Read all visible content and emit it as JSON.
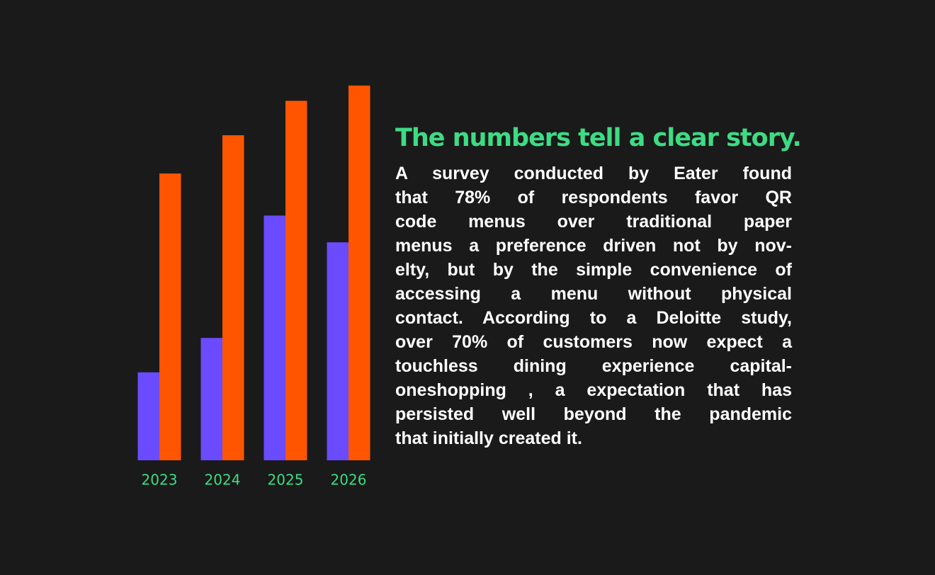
{
  "chart_data": {
    "type": "bar",
    "categories": [
      "2023",
      "2024",
      "2025",
      "2026"
    ],
    "series": [
      {
        "color": "#6b4bff",
        "values": [
          23,
          32,
          64,
          57
        ]
      },
      {
        "color": "#ff5500",
        "values": [
          75,
          85,
          94,
          98
        ]
      }
    ],
    "ylim": [
      0,
      100
    ]
  },
  "text": {
    "title": "The numbers tell a clear story.",
    "lines": [
      "A survey conducted by Eater found",
      "that 78% of respondents favor QR",
      "code menus over traditional paper",
      "menus a preference driven not by nov-",
      "elty, but by the simple convenience of",
      "accessing a menu without physical",
      "contact. According to a Deloitte study,",
      "over 70% of customers now expect a",
      "touchless dining experience capital-",
      "oneshopping , a expectation that has",
      "persisted well beyond the pandemic",
      "that initially created it."
    ]
  }
}
